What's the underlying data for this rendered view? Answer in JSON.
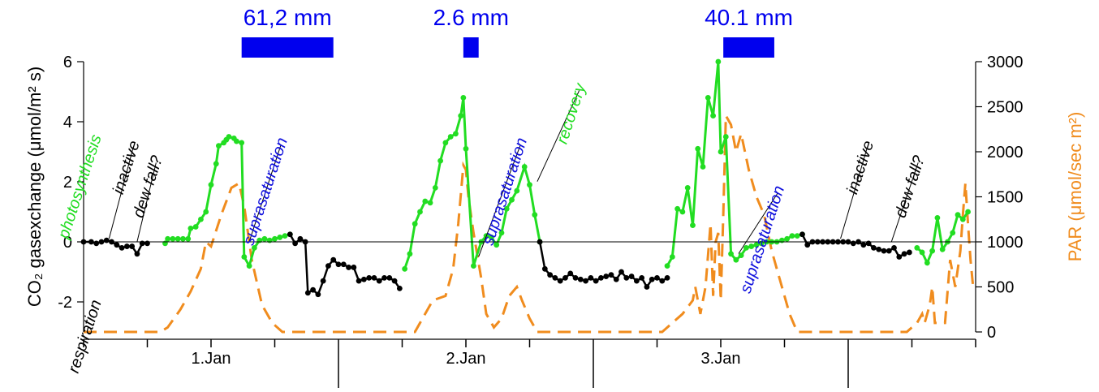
{
  "chart_data": {
    "type": "line",
    "x_ticks": [
      "1.Jan",
      "2.Jan",
      "3.Jan"
    ],
    "x_range": [
      0,
      3.5
    ],
    "y_left": {
      "label": "CO₂ gasexchange (μmol/m² s)",
      "range": [
        -3,
        6
      ],
      "ticks": [
        "-2",
        "0",
        "2",
        "4",
        "6"
      ]
    },
    "y_right": {
      "label": "PAR (μmol/sec m²)",
      "range": [
        0,
        3000
      ],
      "ticks": [
        "0",
        "500",
        "1000",
        "1500",
        "2000",
        "2500",
        "3000"
      ]
    },
    "colors": {
      "active": "#22dd22",
      "inactive": "#000000",
      "par": "#f08c1e",
      "rain": "#0000ee",
      "photosynthesis": "#22dd22",
      "recovery": "#22dd22",
      "suprasaturation": "#1010dd",
      "neutral": "#000000"
    },
    "rain_bars": [
      {
        "label": "61,2 mm",
        "start": 0.62,
        "end": 0.98
      },
      {
        "label": "2.6 mm",
        "start": 1.49,
        "end": 1.55
      },
      {
        "label": "40.1 mm",
        "start": 2.51,
        "end": 2.71
      }
    ],
    "annotations": [
      {
        "text": "photosynthesis",
        "color": "photosynthesis",
        "x": 0.07,
        "y": 3.5,
        "points_to": null
      },
      {
        "text": "respiration",
        "color": "neutral",
        "x": 0.07,
        "y": -2.0,
        "points_to": null
      },
      {
        "text": "inactive",
        "color": "neutral",
        "x": 0.22,
        "y": 3.3,
        "points_to": [
          0.1,
          0.0
        ]
      },
      {
        "text": "dew fall?",
        "color": "neutral",
        "x": 0.31,
        "y": 2.8,
        "points_to": [
          0.21,
          -0.1
        ]
      },
      {
        "text": "suprasaturation",
        "color": "suprasaturation",
        "x": 0.8,
        "y": 3.4,
        "points_to": [
          0.65,
          -0.1
        ]
      },
      {
        "text": "suprasaturation",
        "color": "suprasaturation",
        "x": 1.74,
        "y": 3.4,
        "points_to": [
          1.55,
          -0.6
        ]
      },
      {
        "text": "recovery",
        "color": "recovery",
        "x": 1.97,
        "y": 5.2,
        "points_to": [
          1.78,
          1.9
        ]
      },
      {
        "text": "suprasaturation",
        "color": "suprasaturation",
        "x": 2.75,
        "y": 1.8,
        "points_to": [
          2.57,
          -0.5
        ]
      },
      {
        "text": "inactive",
        "color": "neutral",
        "x": 3.1,
        "y": 3.3,
        "points_to": [
          2.97,
          0.0
        ]
      },
      {
        "text": "dew fall?",
        "color": "neutral",
        "x": 3.3,
        "y": 2.8,
        "points_to": [
          3.17,
          -0.1
        ]
      }
    ],
    "co2_segments": [
      {
        "status": "inactive",
        "points": [
          [
            0.0,
            0.0
          ],
          [
            0.03,
            0.0
          ],
          [
            0.05,
            -0.05
          ],
          [
            0.07,
            0.0
          ],
          [
            0.09,
            0.05
          ],
          [
            0.11,
            0.0
          ],
          [
            0.13,
            -0.1
          ],
          [
            0.15,
            -0.2
          ],
          [
            0.17,
            -0.15
          ],
          [
            0.19,
            -0.15
          ],
          [
            0.21,
            -0.4
          ],
          [
            0.23,
            -0.05
          ],
          [
            0.25,
            -0.05
          ]
        ]
      },
      {
        "status": "active",
        "points": [
          [
            0.32,
            -0.05
          ],
          [
            0.33,
            0.1
          ],
          [
            0.35,
            0.1
          ],
          [
            0.37,
            0.1
          ],
          [
            0.39,
            0.1
          ],
          [
            0.41,
            0.1
          ],
          [
            0.42,
            0.45
          ],
          [
            0.44,
            0.5
          ],
          [
            0.46,
            0.75
          ],
          [
            0.48,
            1.0
          ],
          [
            0.5,
            1.9
          ],
          [
            0.52,
            2.6
          ],
          [
            0.53,
            3.2
          ],
          [
            0.55,
            3.3
          ],
          [
            0.56,
            3.4
          ],
          [
            0.57,
            3.5
          ],
          [
            0.59,
            3.45
          ],
          [
            0.6,
            3.35
          ],
          [
            0.62,
            3.3
          ],
          [
            0.63,
            -0.5
          ],
          [
            0.65,
            -0.8
          ],
          [
            0.67,
            -0.2
          ],
          [
            0.69,
            0.05
          ],
          [
            0.71,
            0.1
          ],
          [
            0.73,
            0.05
          ],
          [
            0.75,
            0.1
          ],
          [
            0.77,
            0.15
          ],
          [
            0.79,
            0.2
          ],
          [
            0.81,
            0.25
          ]
        ]
      },
      {
        "status": "inactive",
        "points": [
          [
            0.81,
            0.25
          ],
          [
            0.83,
            -0.05
          ],
          [
            0.85,
            0.1
          ],
          [
            0.87,
            0.0
          ],
          [
            0.88,
            -1.7
          ],
          [
            0.9,
            -1.6
          ],
          [
            0.92,
            -1.75
          ],
          [
            0.94,
            -1.3
          ],
          [
            0.96,
            -0.8
          ],
          [
            0.98,
            -0.6
          ],
          [
            1.0,
            -0.75
          ],
          [
            1.02,
            -0.75
          ],
          [
            1.04,
            -0.85
          ],
          [
            1.06,
            -0.85
          ],
          [
            1.08,
            -1.3
          ],
          [
            1.1,
            -1.25
          ],
          [
            1.12,
            -1.2
          ],
          [
            1.14,
            -1.2
          ],
          [
            1.16,
            -1.3
          ],
          [
            1.18,
            -1.2
          ],
          [
            1.2,
            -1.2
          ],
          [
            1.22,
            -1.3
          ],
          [
            1.24,
            -1.55
          ]
        ]
      },
      {
        "status": "active",
        "points": [
          [
            1.26,
            -0.9
          ],
          [
            1.28,
            -0.4
          ],
          [
            1.3,
            0.6
          ],
          [
            1.32,
            1.0
          ],
          [
            1.34,
            1.35
          ],
          [
            1.36,
            1.3
          ],
          [
            1.38,
            1.8
          ],
          [
            1.4,
            2.7
          ],
          [
            1.42,
            3.3
          ],
          [
            1.44,
            3.5
          ],
          [
            1.46,
            3.6
          ],
          [
            1.48,
            4.2
          ],
          [
            1.49,
            4.8
          ],
          [
            1.5,
            3.1
          ],
          [
            1.53,
            -0.8
          ],
          [
            1.56,
            0.0
          ],
          [
            1.58,
            0.2
          ],
          [
            1.6,
            0.15
          ],
          [
            1.62,
            -0.1
          ],
          [
            1.64,
            0.3
          ],
          [
            1.66,
            1.1
          ],
          [
            1.68,
            1.4
          ],
          [
            1.7,
            1.7
          ],
          [
            1.73,
            2.5
          ],
          [
            1.75,
            1.9
          ],
          [
            1.77,
            0.9
          ],
          [
            1.79,
            0.0
          ]
        ]
      },
      {
        "status": "inactive",
        "points": [
          [
            1.79,
            0.0
          ],
          [
            1.81,
            -0.9
          ],
          [
            1.83,
            -1.1
          ],
          [
            1.85,
            -1.2
          ],
          [
            1.87,
            -1.3
          ],
          [
            1.89,
            -1.2
          ],
          [
            1.91,
            -1.05
          ],
          [
            1.93,
            -1.2
          ],
          [
            1.95,
            -1.25
          ],
          [
            1.97,
            -1.3
          ],
          [
            1.99,
            -1.2
          ],
          [
            2.01,
            -1.3
          ],
          [
            2.03,
            -1.2
          ],
          [
            2.05,
            -1.15
          ],
          [
            2.07,
            -1.1
          ],
          [
            2.09,
            -1.25
          ],
          [
            2.11,
            -1.0
          ],
          [
            2.13,
            -1.2
          ],
          [
            2.15,
            -1.15
          ],
          [
            2.17,
            -1.3
          ],
          [
            2.19,
            -1.2
          ],
          [
            2.21,
            -1.5
          ],
          [
            2.23,
            -1.25
          ],
          [
            2.25,
            -1.2
          ],
          [
            2.27,
            -1.3
          ],
          [
            2.29,
            -1.2
          ]
        ]
      },
      {
        "status": "active",
        "points": [
          [
            2.29,
            -0.8
          ],
          [
            2.31,
            -0.5
          ],
          [
            2.33,
            1.1
          ],
          [
            2.35,
            1.0
          ],
          [
            2.37,
            1.8
          ],
          [
            2.39,
            0.55
          ],
          [
            2.41,
            3.1
          ],
          [
            2.43,
            2.5
          ],
          [
            2.45,
            4.8
          ],
          [
            2.47,
            4.2
          ],
          [
            2.49,
            6.0
          ],
          [
            2.5,
            3.0
          ],
          [
            2.52,
            3.5
          ],
          [
            2.54,
            -0.4
          ],
          [
            2.56,
            -0.6
          ],
          [
            2.58,
            -0.45
          ],
          [
            2.6,
            -0.2
          ],
          [
            2.62,
            -0.15
          ],
          [
            2.64,
            -0.1
          ],
          [
            2.66,
            -0.05
          ],
          [
            2.68,
            0.0
          ],
          [
            2.7,
            0.0
          ],
          [
            2.72,
            0.0
          ],
          [
            2.74,
            0.05
          ],
          [
            2.76,
            0.1
          ],
          [
            2.78,
            0.2
          ],
          [
            2.8,
            0.2
          ],
          [
            2.82,
            0.25
          ]
        ]
      },
      {
        "status": "inactive",
        "points": [
          [
            2.82,
            0.25
          ],
          [
            2.84,
            -0.1
          ],
          [
            2.86,
            0.0
          ],
          [
            2.88,
            0.0
          ],
          [
            2.9,
            0.0
          ],
          [
            2.92,
            0.0
          ],
          [
            2.94,
            0.0
          ],
          [
            2.96,
            0.0
          ],
          [
            2.98,
            0.0
          ],
          [
            3.0,
            0.0
          ],
          [
            3.02,
            -0.05
          ],
          [
            3.04,
            0.0
          ],
          [
            3.06,
            -0.1
          ],
          [
            3.08,
            -0.05
          ],
          [
            3.1,
            -0.2
          ],
          [
            3.12,
            -0.25
          ],
          [
            3.14,
            -0.3
          ],
          [
            3.16,
            -0.3
          ],
          [
            3.18,
            -0.2
          ],
          [
            3.2,
            -0.5
          ],
          [
            3.22,
            -0.4
          ],
          [
            3.24,
            -0.35
          ]
        ]
      },
      {
        "status": "active",
        "points": [
          [
            3.27,
            -0.2
          ],
          [
            3.29,
            -0.35
          ],
          [
            3.31,
            -0.7
          ],
          [
            3.33,
            -0.3
          ],
          [
            3.35,
            0.8
          ],
          [
            3.37,
            -0.25
          ],
          [
            3.39,
            0.0
          ],
          [
            3.41,
            0.3
          ],
          [
            3.43,
            0.9
          ],
          [
            3.45,
            0.75
          ],
          [
            3.47,
            1.0
          ]
        ]
      }
    ],
    "par": [
      [
        0.0,
        0
      ],
      [
        0.3,
        0
      ],
      [
        0.33,
        50
      ],
      [
        0.38,
        250
      ],
      [
        0.42,
        450
      ],
      [
        0.46,
        700
      ],
      [
        0.48,
        1000
      ],
      [
        0.5,
        950
      ],
      [
        0.54,
        1300
      ],
      [
        0.58,
        1600
      ],
      [
        0.61,
        1650
      ],
      [
        0.63,
        1400
      ],
      [
        0.66,
        800
      ],
      [
        0.7,
        300
      ],
      [
        0.74,
        100
      ],
      [
        0.78,
        0
      ],
      [
        1.3,
        0
      ],
      [
        1.33,
        150
      ],
      [
        1.37,
        350
      ],
      [
        1.42,
        400
      ],
      [
        1.45,
        700
      ],
      [
        1.47,
        1200
      ],
      [
        1.49,
        1850
      ],
      [
        1.5,
        1800
      ],
      [
        1.51,
        1500
      ],
      [
        1.53,
        1100
      ],
      [
        1.56,
        600
      ],
      [
        1.58,
        200
      ],
      [
        1.61,
        50
      ],
      [
        1.64,
        150
      ],
      [
        1.67,
        400
      ],
      [
        1.7,
        500
      ],
      [
        1.72,
        350
      ],
      [
        1.75,
        150
      ],
      [
        1.78,
        0
      ],
      [
        2.27,
        0
      ],
      [
        2.31,
        100
      ],
      [
        2.35,
        200
      ],
      [
        2.39,
        350
      ],
      [
        2.4,
        500
      ],
      [
        2.42,
        200
      ],
      [
        2.44,
        500
      ],
      [
        2.46,
        1200
      ],
      [
        2.47,
        400
      ],
      [
        2.48,
        1000
      ],
      [
        2.49,
        1100
      ],
      [
        2.5,
        350
      ],
      [
        2.51,
        1300
      ],
      [
        2.52,
        2400
      ],
      [
        2.54,
        2300
      ],
      [
        2.56,
        2000
      ],
      [
        2.58,
        2200
      ],
      [
        2.61,
        1800
      ],
      [
        2.64,
        1500
      ],
      [
        2.67,
        1300
      ],
      [
        2.7,
        900
      ],
      [
        2.73,
        600
      ],
      [
        2.77,
        200
      ],
      [
        2.8,
        0
      ],
      [
        3.23,
        0
      ],
      [
        3.27,
        100
      ],
      [
        3.29,
        200
      ],
      [
        3.3,
        100
      ],
      [
        3.32,
        300
      ],
      [
        3.33,
        500
      ],
      [
        3.34,
        100
      ],
      [
        3.36,
        100
      ],
      [
        3.38,
        100
      ],
      [
        3.4,
        800
      ],
      [
        3.42,
        500
      ],
      [
        3.44,
        900
      ],
      [
        3.45,
        1300
      ],
      [
        3.46,
        1650
      ],
      [
        3.47,
        1200
      ],
      [
        3.48,
        800
      ],
      [
        3.49,
        500
      ]
    ]
  }
}
